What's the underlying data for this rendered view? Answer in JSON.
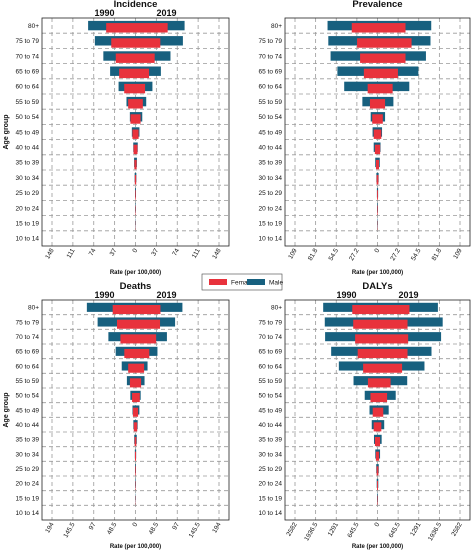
{
  "age_groups": [
    "10 to 14",
    "15 to 19",
    "20 to 24",
    "25 to 29",
    "30 to 34",
    "35 to 39",
    "40 to 44",
    "45 to 49",
    "50 to 54",
    "55 to 59",
    "60 to 64",
    "65 to 69",
    "70 to 74",
    "75 to 79",
    "80+"
  ],
  "legend": {
    "female": "Female",
    "male": "Male"
  },
  "colors": {
    "female": "#e8323c",
    "male": "#17607f"
  },
  "chart_data": [
    {
      "type": "bar",
      "title": "Incidence",
      "left_label": "1990",
      "right_label": "2019",
      "xlabel": "Rate (per 100,000)",
      "ylabel": "Age group",
      "max": 148,
      "tick_labels_left": [
        "148",
        "111",
        "74",
        "37",
        "0"
      ],
      "tick_labels_right": [
        "37",
        "74",
        "111",
        "148"
      ],
      "series": [
        {
          "name": "Male",
          "side": "1990",
          "values": [
            0,
            0.3,
            0.5,
            0.8,
            1.5,
            2.5,
            4,
            6.5,
            10,
            16,
            30,
            45,
            57,
            72,
            84
          ]
        },
        {
          "name": "Female",
          "side": "1990",
          "values": [
            0,
            0.2,
            0.4,
            0.6,
            1.2,
            2,
            3.5,
            5.5,
            9,
            13,
            20,
            29,
            35,
            43,
            52
          ]
        },
        {
          "name": "Male",
          "side": "2019",
          "values": [
            0,
            0.3,
            0.5,
            0.8,
            1.5,
            2.5,
            4,
            7,
            12,
            19,
            30,
            45,
            62,
            84,
            87
          ]
        },
        {
          "name": "Female",
          "side": "2019",
          "values": [
            0,
            0.2,
            0.4,
            0.6,
            1.2,
            2,
            3.5,
            5.5,
            9,
            13,
            17,
            24,
            34,
            44,
            57
          ]
        }
      ]
    },
    {
      "type": "bar",
      "title": "Prevalence",
      "left_label": "",
      "right_label": "",
      "xlabel": "Rate (per 100,000)",
      "ylabel": "",
      "max": 109,
      "tick_labels_left": [
        "109",
        "81.8",
        "54.5",
        "27.2",
        "0"
      ],
      "tick_labels_right": [
        "27.2",
        "54.5",
        "81.8",
        "109"
      ],
      "series": [
        {
          "name": "Male",
          "side": "1990",
          "values": [
            0,
            0.3,
            0.5,
            0.8,
            1.5,
            3,
            5,
            6.5,
            9,
            20,
            44,
            53,
            62,
            65,
            66
          ]
        },
        {
          "name": "Female",
          "side": "1990",
          "values": [
            0,
            0.2,
            0.4,
            0.6,
            1.2,
            2,
            3.5,
            5,
            7,
            10,
            13,
            18,
            23,
            27,
            34
          ]
        },
        {
          "name": "Male",
          "side": "2019",
          "values": [
            0,
            0.3,
            0.5,
            0.8,
            1.5,
            3,
            4,
            6,
            10,
            21,
            42,
            54,
            64,
            70,
            71
          ]
        },
        {
          "name": "Female",
          "side": "2019",
          "values": [
            0,
            0.2,
            0.4,
            0.6,
            1.2,
            2,
            3.5,
            5,
            7,
            10,
            20,
            27,
            37,
            45,
            37
          ]
        }
      ]
    },
    {
      "type": "bar",
      "title": "Deaths",
      "left_label": "1990",
      "right_label": "2019",
      "xlabel": "Rate (per 100,000)",
      "ylabel": "Age group",
      "max": 194,
      "tick_labels_left": [
        "194",
        "145.5",
        "97",
        "48.5",
        "0"
      ],
      "tick_labels_right": [
        "48.5",
        "97",
        "145.5",
        "194"
      ],
      "series": [
        {
          "name": "Male",
          "side": "1990",
          "values": [
            0,
            0.4,
            0.7,
            1,
            1.5,
            3,
            5,
            7,
            12,
            20,
            32,
            46,
            63,
            88,
            113
          ]
        },
        {
          "name": "Female",
          "side": "1990",
          "values": [
            0,
            0.3,
            0.5,
            0.8,
            1.2,
            2,
            4,
            6,
            8,
            13,
            17,
            26,
            35,
            43,
            53
          ]
        },
        {
          "name": "Male",
          "side": "2019",
          "values": [
            0,
            0.4,
            0.7,
            1,
            1.5,
            3,
            5,
            9,
            12,
            21,
            28,
            51,
            73,
            92,
            109
          ]
        },
        {
          "name": "Female",
          "side": "2019",
          "values": [
            0,
            0.3,
            0.5,
            0.8,
            1.2,
            2,
            4,
            6,
            10,
            13,
            20,
            32,
            48,
            57,
            58
          ]
        }
      ]
    },
    {
      "type": "bar",
      "title": "DALYs",
      "left_label": "1990",
      "right_label": "2019",
      "xlabel": "Rate (per 100,000)",
      "ylabel": "",
      "max": 2582,
      "tick_labels_left": [
        "2582",
        "1936.5",
        "1291",
        "645.5",
        "0"
      ],
      "tick_labels_right": [
        "645.5",
        "1291",
        "1936.5",
        "2582"
      ],
      "series": [
        {
          "name": "Male",
          "side": "1990",
          "values": [
            0,
            12,
            25,
            40,
            70,
            110,
            180,
            250,
            400,
            750,
            1210,
            1450,
            1640,
            1650,
            1700
          ]
        },
        {
          "name": "Female",
          "side": "1990",
          "values": [
            0,
            8,
            15,
            28,
            50,
            80,
            120,
            150,
            220,
            300,
            450,
            620,
            700,
            760,
            790
          ]
        },
        {
          "name": "Male",
          "side": "2019",
          "values": [
            0,
            12,
            25,
            40,
            80,
            130,
            210,
            350,
            570,
            930,
            1470,
            1690,
            1990,
            2040,
            1890
          ]
        },
        {
          "name": "Female",
          "side": "2019",
          "values": [
            0,
            8,
            15,
            28,
            50,
            80,
            120,
            180,
            300,
            410,
            770,
            940,
            960,
            940,
            1000
          ]
        }
      ]
    }
  ]
}
